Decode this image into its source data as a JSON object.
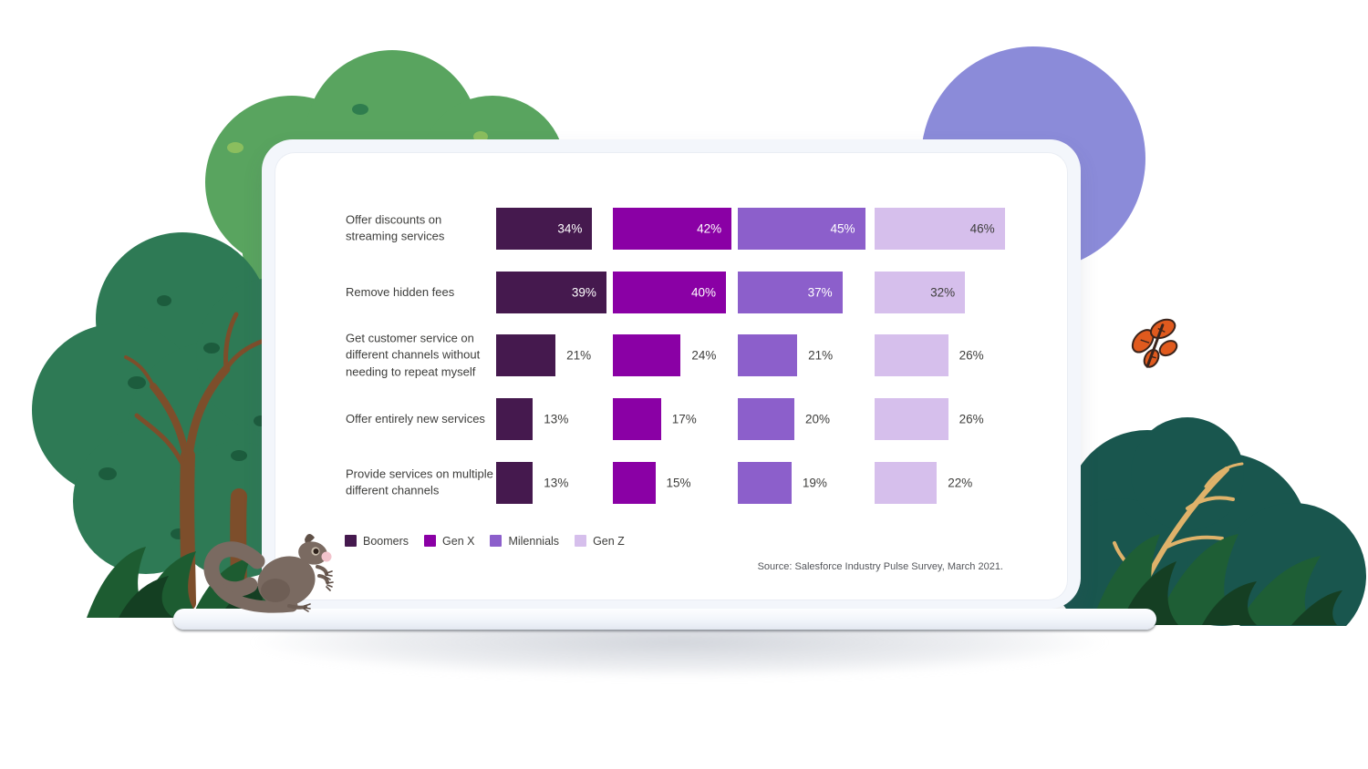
{
  "chart_data": {
    "type": "bar",
    "orientation": "horizontal",
    "unit": "%",
    "grid": false,
    "legend_position": "bottom-left",
    "categories": [
      "Offer discounts on streaming services",
      "Remove hidden fees",
      "Get customer service on different channels without needing to repeat myself",
      "Offer entirely new services",
      "Provide services on multiple different channels"
    ],
    "series": [
      {
        "name": "Boomers",
        "color": "#45194E",
        "values": [
          34,
          39,
          21,
          13,
          13
        ],
        "display": [
          "34%",
          "39%",
          "21%",
          "13%",
          "13%"
        ]
      },
      {
        "name": "Gen X",
        "color": "#8A00A5",
        "values": [
          42,
          40,
          24,
          17,
          15
        ],
        "display": [
          "42%",
          "40%",
          "24%",
          "17%",
          "15%"
        ]
      },
      {
        "name": "Milennials",
        "color": "#8C5FCB",
        "values": [
          45,
          37,
          21,
          20,
          19
        ],
        "display": [
          "45%",
          "37%",
          "21%",
          "20%",
          "19%"
        ]
      },
      {
        "name": "Gen Z",
        "color": "#D6BFEC",
        "values": [
          46,
          32,
          26,
          26,
          22
        ],
        "display": [
          "46%",
          "32%",
          "26%",
          "26%",
          "22%"
        ]
      }
    ],
    "source": "Source: Salesforce Industry Pulse Survey, March 2021."
  },
  "decor": {
    "purple_circle": "#8B8BD9",
    "canopy_light_green": "#59A45F",
    "canopy_dark_green": "#2E7A55",
    "trunk_brown": "#7D4E2B",
    "bush_dark_green": "#1D5C31",
    "bush_teal": "#19564E",
    "branch_tan": "#DFB26A",
    "butterfly_orange": "#E05A1E",
    "squirrel_brown": "#7A6A61"
  }
}
